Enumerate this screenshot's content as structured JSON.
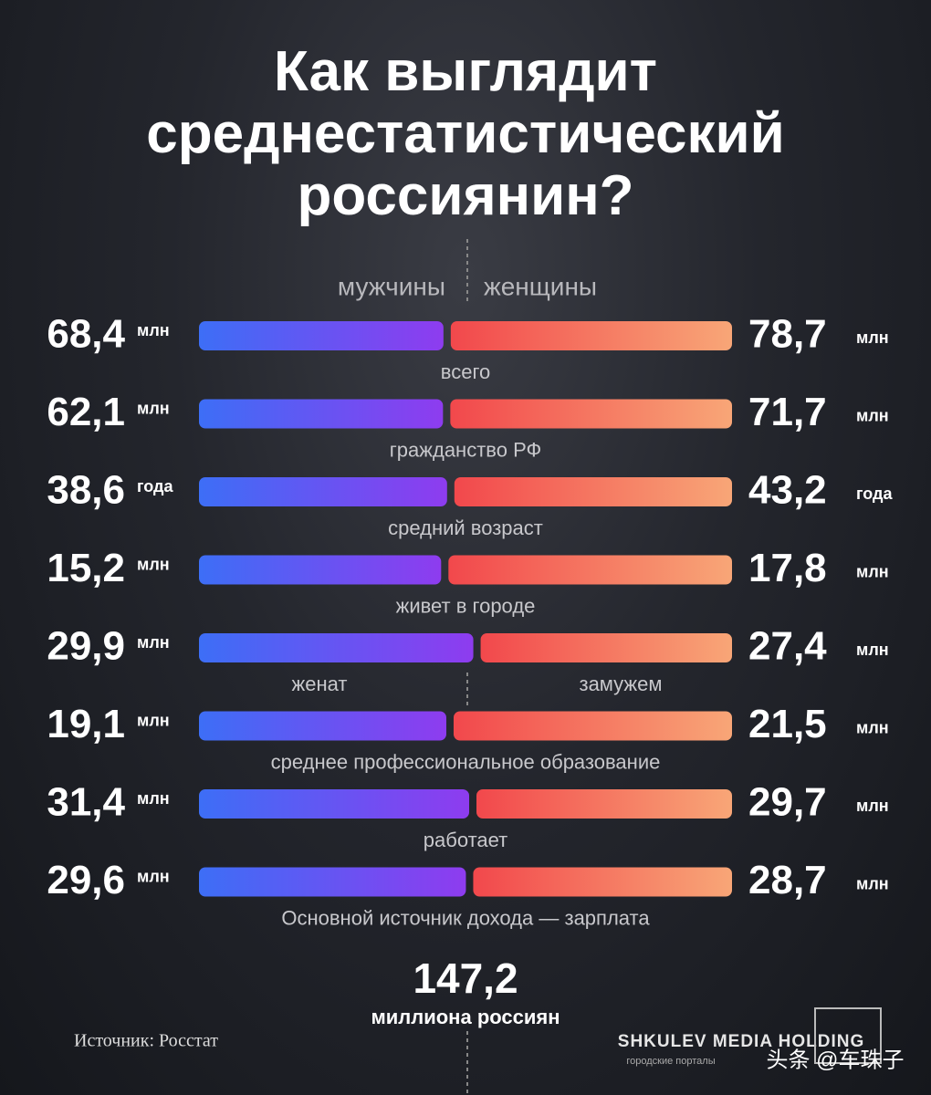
{
  "chart_data": {
    "type": "split_bar",
    "title": "Как выглядит среднестатистический россиянин?",
    "categories": [
      "всего",
      "гражданство РФ",
      "средний возраст",
      "живет в городе",
      {
        "left": "женат",
        "right": "замужем"
      },
      "среднее профессиональное образование",
      "работает",
      "Основной источник дохода — зарплата"
    ],
    "units": [
      "млн",
      "млн",
      "года",
      "млн",
      "млн",
      "млн",
      "млн",
      "млн"
    ],
    "series": [
      {
        "name": "мужчины",
        "colors": [
          "#3d6ef6",
          "#8e3cef"
        ],
        "values": [
          68.4,
          62.1,
          38.6,
          15.2,
          29.9,
          19.1,
          31.4,
          29.6
        ],
        "value_labels": [
          "68,4",
          "62,1",
          "38,6",
          "15,2",
          "29,9",
          "19,1",
          "31,4",
          "29,6"
        ]
      },
      {
        "name": "женщины",
        "colors": [
          "#f2484c",
          "#f8a677"
        ],
        "values": [
          78.7,
          71.7,
          43.2,
          17.8,
          27.4,
          21.5,
          29.7,
          28.7
        ],
        "value_labels": [
          "78,7",
          "71,7",
          "43,2",
          "17,8",
          "27,4",
          "21,5",
          "29,7",
          "28,7"
        ]
      }
    ],
    "total": {
      "value": 147.2,
      "label": "147,2",
      "caption": "миллиона россиян"
    },
    "source": "Источник: Росстат",
    "brand": "SHKULEV MEDIA HOLDING",
    "brand_subtitle": "городские порталы",
    "watermark": "头条 @车珠子"
  }
}
